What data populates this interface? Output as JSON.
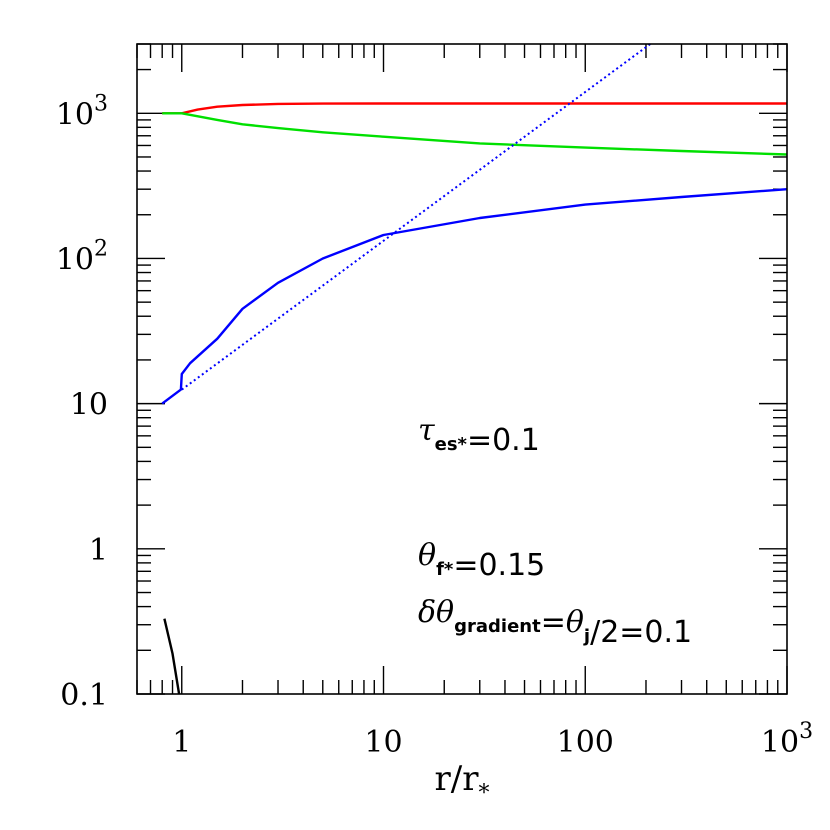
{
  "chart_data": {
    "type": "line",
    "xlabel_main": "r/r",
    "xlabel_sub": "*",
    "x_scale": "log",
    "y_scale": "log",
    "xlim": [
      0.6,
      1000
    ],
    "ylim": [
      0.1,
      3000
    ],
    "x_ticks": [
      {
        "value": 1,
        "base": "1",
        "exp": ""
      },
      {
        "value": 10,
        "base": "10",
        "exp": ""
      },
      {
        "value": 100,
        "base": "100",
        "exp": ""
      },
      {
        "value": 1000,
        "base": "10",
        "exp": "3"
      }
    ],
    "y_ticks": [
      {
        "value": 0.1,
        "base": "0.1",
        "exp": ""
      },
      {
        "value": 1,
        "base": "1",
        "exp": ""
      },
      {
        "value": 10,
        "base": "10",
        "exp": ""
      },
      {
        "value": 100,
        "base": "10",
        "exp": "2"
      },
      {
        "value": 1000,
        "base": "10",
        "exp": "3"
      }
    ],
    "series": [
      {
        "color": "#ff0000",
        "style": "solid",
        "points": [
          [
            0.8,
            1000
          ],
          [
            1.0,
            1000
          ],
          [
            1.2,
            1060
          ],
          [
            1.5,
            1110
          ],
          [
            2,
            1140
          ],
          [
            3,
            1160
          ],
          [
            5,
            1165
          ],
          [
            10,
            1168
          ],
          [
            100,
            1168
          ],
          [
            1000,
            1168
          ]
        ]
      },
      {
        "color": "#00e000",
        "style": "solid",
        "points": [
          [
            0.8,
            1000
          ],
          [
            1.0,
            1000
          ],
          [
            1.5,
            900
          ],
          [
            2,
            840
          ],
          [
            3,
            790
          ],
          [
            5,
            740
          ],
          [
            10,
            690
          ],
          [
            30,
            620
          ],
          [
            100,
            580
          ],
          [
            300,
            550
          ],
          [
            1000,
            520
          ]
        ]
      },
      {
        "color": "#0000ff",
        "style": "solid",
        "points": [
          [
            0.8,
            10
          ],
          [
            0.99,
            12.5
          ],
          [
            1.0,
            16
          ],
          [
            1.1,
            19
          ],
          [
            1.5,
            28
          ],
          [
            2,
            45
          ],
          [
            3,
            68
          ],
          [
            5,
            100
          ],
          [
            10,
            145
          ],
          [
            30,
            190
          ],
          [
            100,
            235
          ],
          [
            300,
            265
          ],
          [
            1000,
            300
          ]
        ]
      },
      {
        "color": "#0000ff",
        "style": "dotted",
        "points": [
          [
            1.0,
            12.5
          ],
          [
            210,
            3000
          ]
        ]
      },
      {
        "color": "#000000",
        "style": "solid",
        "points": [
          [
            0.82,
            0.33
          ],
          [
            0.9,
            0.19
          ],
          [
            0.97,
            0.1
          ]
        ]
      }
    ],
    "annotations": [
      {
        "id": "tau",
        "text": "τes*=0.1",
        "parts": [
          {
            "t": "τ",
            "cls": "annot-greek"
          },
          {
            "t": "es*",
            "cls": "annot-sub",
            "sub": true
          },
          {
            "t": "=0.1"
          }
        ]
      },
      {
        "id": "thetaf",
        "text": "θf*=0.15",
        "parts": [
          {
            "t": "θ",
            "cls": "annot-greek"
          },
          {
            "t": "f*",
            "cls": "annot-sub",
            "sub": true
          },
          {
            "t": "=0.15"
          }
        ]
      },
      {
        "id": "dtheta",
        "text": "δθgradient=θj/2=0.1",
        "parts": [
          {
            "t": "δθ",
            "cls": "annot-greek"
          },
          {
            "t": "gradient",
            "cls": "annot-sub",
            "sub": true
          },
          {
            "t": "="
          },
          {
            "t": "θ",
            "cls": "annot-greek"
          },
          {
            "t": "j",
            "cls": "annot-sub",
            "sub": true
          },
          {
            "t": "/2=0.1"
          }
        ]
      }
    ],
    "grid": false,
    "legend": "none"
  }
}
